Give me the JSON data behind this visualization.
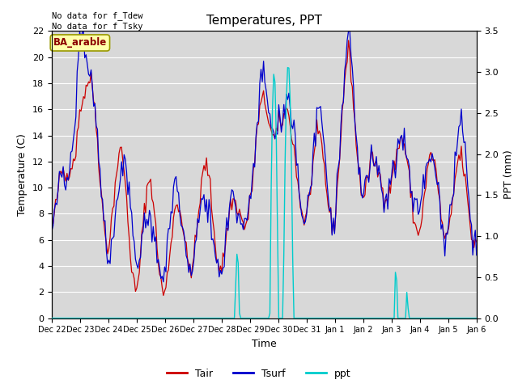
{
  "title": "Temperatures, PPT",
  "xlabel": "Time",
  "ylabel_left": "Temperature (C)",
  "ylabel_right": "PPT (mm)",
  "annotation_text": "No data for f_Tdew\nNo data for f_Tsky",
  "box_label": "BA_arable",
  "ylim_left": [
    0,
    22
  ],
  "ylim_right": [
    0,
    3.5
  ],
  "yticks_left": [
    0,
    2,
    4,
    6,
    8,
    10,
    12,
    14,
    16,
    18,
    20,
    22
  ],
  "xtick_labels": [
    "Dec 22",
    "Dec 23",
    "Dec 24",
    "Dec 25",
    "Dec 26",
    "Dec 27",
    "Dec 28",
    "Dec 29",
    "Dec 30",
    "Dec 31",
    "Jan 1",
    "Jan 2",
    "Jan 3",
    "Jan 4",
    "Jan 5",
    "Jan 6"
  ],
  "color_tair": "#cc0000",
  "color_tsurf": "#0000cc",
  "color_ppt": "#00cccc",
  "color_bg": "#d8d8d8",
  "legend_labels": [
    "Tair",
    "Tsurf",
    "ppt"
  ],
  "n_points": 336
}
